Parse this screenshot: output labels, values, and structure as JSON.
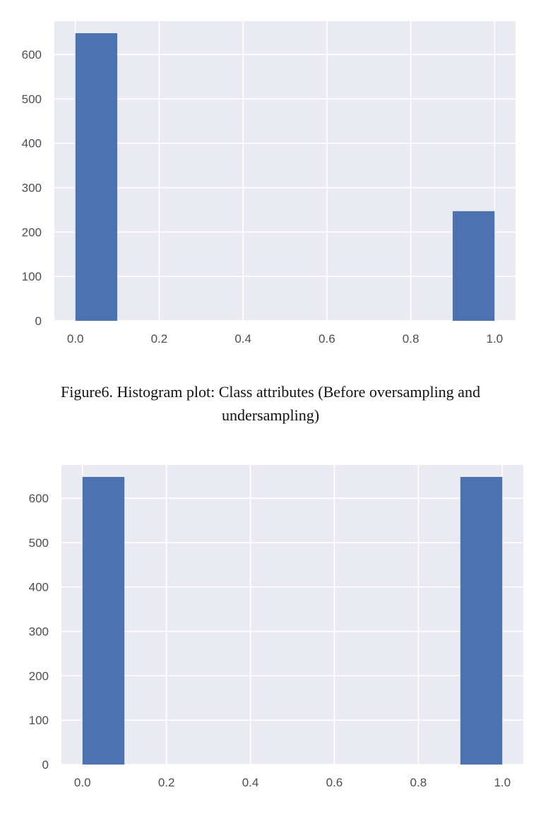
{
  "chart_data": [
    {
      "type": "bar",
      "title": "",
      "xlabel": "",
      "ylabel": "",
      "bins": [
        {
          "x0": 0.0,
          "x1": 0.1,
          "value": 648
        },
        {
          "x0": 0.9,
          "x1": 1.0,
          "value": 247
        }
      ],
      "xlim": [
        -0.05,
        1.05
      ],
      "ylim": [
        0,
        675
      ],
      "xticks": [
        "0.0",
        "0.2",
        "0.4",
        "0.6",
        "0.8",
        "1.0"
      ],
      "yticks": [
        "0",
        "100",
        "200",
        "300",
        "400",
        "500",
        "600"
      ],
      "grid": true,
      "colors": {
        "bar": "#4c72b0",
        "background": "#eaeaf2",
        "grid": "#ffffff"
      }
    },
    {
      "type": "bar",
      "title": "",
      "xlabel": "",
      "ylabel": "",
      "bins": [
        {
          "x0": 0.0,
          "x1": 0.1,
          "value": 648
        },
        {
          "x0": 0.9,
          "x1": 1.0,
          "value": 648
        }
      ],
      "xlim": [
        -0.05,
        1.05
      ],
      "ylim": [
        0,
        675
      ],
      "xticks": [
        "0.0",
        "0.2",
        "0.4",
        "0.6",
        "0.8",
        "1.0"
      ],
      "yticks": [
        "0",
        "100",
        "200",
        "300",
        "400",
        "500",
        "600"
      ],
      "grid": true,
      "colors": {
        "bar": "#4c72b0",
        "background": "#eaeaf2",
        "grid": "#ffffff"
      }
    }
  ],
  "caption": {
    "text": "Figure6. Histogram plot: Class attributes (Before oversampling and undersampling)"
  }
}
